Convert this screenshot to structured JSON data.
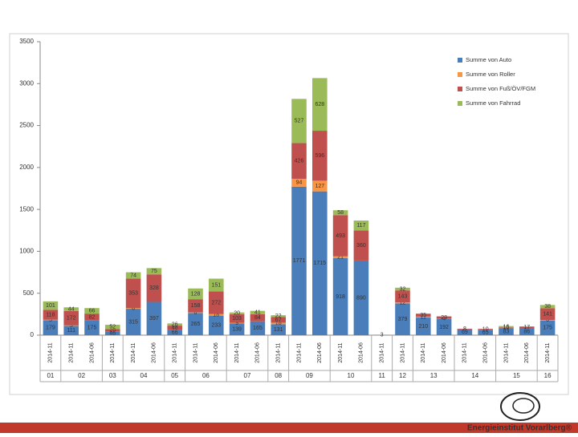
{
  "chart_data": {
    "type": "stacked_bar",
    "groups": [
      {
        "label": "01",
        "categories": [
          "2014-11"
        ]
      },
      {
        "label": "02",
        "categories": [
          "2014-11",
          "2014-06"
        ]
      },
      {
        "label": "03",
        "categories": [
          "2014-11"
        ]
      },
      {
        "label": "04",
        "categories": [
          "2014-11",
          "2014-06"
        ]
      },
      {
        "label": "05",
        "categories": [
          "2014-11"
        ]
      },
      {
        "label": "06",
        "categories": [
          "2014-11",
          "2014-06"
        ]
      },
      {
        "label": "07",
        "categories": [
          "2014-11",
          "2014-06"
        ]
      },
      {
        "label": "08",
        "categories": [
          "2014-11"
        ]
      },
      {
        "label": "09",
        "categories": [
          "2014-11",
          "2014-06"
        ]
      },
      {
        "label": "10",
        "categories": [
          "2014-11",
          "2014-06"
        ]
      },
      {
        "label": "11",
        "categories": [
          "2014-11"
        ]
      },
      {
        "label": "12",
        "categories": [
          "2014-11"
        ]
      },
      {
        "label": "13",
        "categories": [
          "2014-11",
          "2014-06"
        ]
      },
      {
        "label": "14",
        "categories": [
          "2014-11",
          "2014-06"
        ]
      },
      {
        "label": "15",
        "categories": [
          "2014-11",
          "2014-06"
        ]
      },
      {
        "label": "16",
        "categories": [
          "2014-11"
        ]
      }
    ],
    "series": [
      {
        "name": "Summe von Auto",
        "color": "#4a7ebb",
        "values": [
          179,
          111,
          175,
          46,
          315,
          397,
          66,
          265,
          233,
          139,
          165,
          131,
          1771,
          1715,
          918,
          890,
          3,
          379,
          210,
          192,
          69,
          65,
          83,
          86,
          175
        ]
      },
      {
        "name": "Summe von Roller",
        "color": "#f79646",
        "values": [
          5,
          5,
          null,
          null,
          8,
          null,
          null,
          6,
          18,
          9,
          null,
          18,
          94,
          127,
          21,
          null,
          null,
          12,
          11,
          4,
          null,
          null,
          null,
          null,
          6
        ]
      },
      {
        "name": "Summe von Fuß/ÖV/FGM",
        "color": "#c0504d",
        "values": [
          118,
          172,
          82,
          26,
          353,
          328,
          48,
          158,
          272,
          103,
          84,
          67,
          426,
          596,
          493,
          360,
          null,
          143,
          35,
          28,
          8,
          10,
          10,
          17,
          141
        ]
      },
      {
        "name": "Summe von Fahrrad",
        "color": "#9bbb59",
        "values": [
          101,
          44,
          66,
          52,
          74,
          75,
          26,
          128,
          151,
          20,
          41,
          22,
          527,
          628,
          58,
          117,
          null,
          32,
          null,
          null,
          null,
          null,
          16,
          null,
          38
        ]
      }
    ],
    "ylim": [
      0,
      3500
    ],
    "yticks": [
      0,
      500,
      1000,
      1500,
      2000,
      2500,
      3000,
      3500
    ],
    "grid": false
  },
  "footer": {
    "logo": "Energieinstitut Vorarlberg®"
  }
}
